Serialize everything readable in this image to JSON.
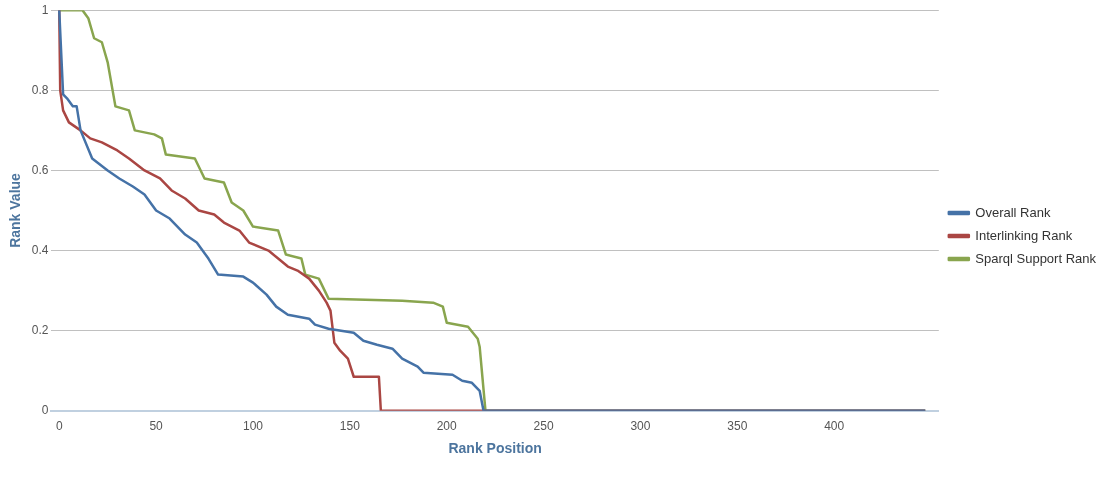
{
  "chart_data": {
    "type": "line",
    "xlabel": "Rank Position",
    "ylabel": "Rank Value",
    "xlim": [
      -4,
      454
    ],
    "ylim": [
      0,
      1
    ],
    "xticks": [
      0,
      50,
      100,
      150,
      200,
      250,
      300,
      350,
      400
    ],
    "yticks": [
      0,
      0.2,
      0.4,
      0.6,
      0.8,
      1
    ],
    "grid": "y",
    "legend": "right",
    "marker": "none",
    "line_style": "solid",
    "series": [
      {
        "name": "Overall Rank",
        "color": "#4572a7",
        "x": [
          0,
          2,
          4,
          7,
          9,
          11,
          17,
          25,
          31,
          38,
          44,
          50,
          57,
          65,
          71,
          77,
          82,
          95,
          100,
          107,
          112,
          118,
          129,
          132,
          139,
          152,
          157,
          164,
          172,
          177,
          185,
          188,
          203,
          208,
          213,
          217,
          219,
          447
        ],
        "values": [
          1,
          0.79,
          0.78,
          0.76,
          0.76,
          0.7,
          0.63,
          0.6,
          0.58,
          0.56,
          0.54,
          0.5,
          0.48,
          0.44,
          0.42,
          0.38,
          0.34,
          0.335,
          0.32,
          0.29,
          0.26,
          0.24,
          0.23,
          0.215,
          0.205,
          0.195,
          0.175,
          0.165,
          0.155,
          0.13,
          0.11,
          0.095,
          0.09,
          0.075,
          0.07,
          0.05,
          0,
          0
        ]
      },
      {
        "name": "Interlinking Rank",
        "color": "#aa4643",
        "x": [
          0,
          0.5,
          2,
          5,
          11,
          16,
          22,
          30,
          36,
          44,
          52,
          58,
          65,
          72,
          80,
          85,
          93,
          98,
          108,
          113,
          118,
          123,
          129,
          134,
          138,
          140,
          142,
          145,
          149,
          152,
          165,
          166,
          447
        ],
        "values": [
          1,
          0.8,
          0.75,
          0.72,
          0.7,
          0.68,
          0.67,
          0.65,
          0.63,
          0.6,
          0.58,
          0.55,
          0.53,
          0.5,
          0.49,
          0.47,
          0.45,
          0.42,
          0.4,
          0.38,
          0.36,
          0.35,
          0.33,
          0.3,
          0.27,
          0.25,
          0.17,
          0.15,
          0.13,
          0.085,
          0.085,
          0,
          0
        ]
      },
      {
        "name": "Sparql Support Rank",
        "color": "#89a54e",
        "x": [
          0,
          12,
          15,
          18,
          22,
          25,
          29,
          36,
          39,
          49,
          53,
          55,
          70,
          75,
          85,
          89,
          95,
          100,
          113,
          117,
          125,
          127,
          134,
          139,
          177,
          193,
          198,
          200,
          211,
          216,
          217,
          220,
          447
        ],
        "values": [
          1,
          1,
          0.98,
          0.93,
          0.92,
          0.87,
          0.76,
          0.75,
          0.7,
          0.69,
          0.68,
          0.64,
          0.63,
          0.58,
          0.57,
          0.52,
          0.5,
          0.46,
          0.45,
          0.39,
          0.38,
          0.34,
          0.33,
          0.28,
          0.275,
          0.27,
          0.26,
          0.22,
          0.21,
          0.18,
          0.16,
          0,
          0
        ]
      }
    ]
  }
}
